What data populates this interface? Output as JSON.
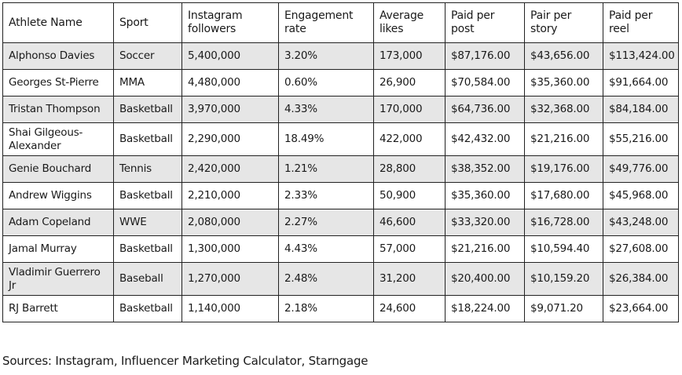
{
  "table": {
    "headers": [
      "Athlete Name",
      "Sport",
      "Instagram followers",
      "Engagement rate",
      "Average likes",
      "Paid per post",
      "Pair per story",
      "Paid per reel"
    ],
    "rows": [
      [
        "Alphonso Davies",
        "Soccer",
        "5,400,000",
        "3.20%",
        "173,000",
        "$87,176.00",
        "$43,656.00",
        "$113,424.00"
      ],
      [
        "Georges St-Pierre",
        "MMA",
        "4,480,000",
        "0.60%",
        "26,900",
        "$70,584.00",
        "$35,360.00",
        "$91,664.00"
      ],
      [
        "Tristan Thompson",
        "Basketball",
        "3,970,000",
        "4.33%",
        "170,000",
        "$64,736.00",
        "$32,368.00",
        "$84,184.00"
      ],
      [
        "Shai Gilgeous-Alexander",
        "Basketball",
        "2,290,000",
        "18.49%",
        "422,000",
        "$42,432.00",
        "$21,216.00",
        "$55,216.00"
      ],
      [
        "Genie Bouchard",
        "Tennis",
        "2,420,000",
        "1.21%",
        "28,800",
        "$38,352.00",
        "$19,176.00",
        "$49,776.00"
      ],
      [
        "Andrew Wiggins",
        "Basketball",
        "2,210,000",
        "2.33%",
        "50,900",
        "$35,360.00",
        "$17,680.00",
        "$45,968.00"
      ],
      [
        "Adam Copeland",
        "WWE",
        "2,080,000",
        "2.27%",
        "46,600",
        "$33,320.00",
        "$16,728.00",
        "$43,248.00"
      ],
      [
        "Jamal Murray",
        "Basketball",
        "1,300,000",
        "4.43%",
        "57,000",
        "$21,216.00",
        "$10,594.40",
        "$27,608.00"
      ],
      [
        "Vladimir Guerrero Jr",
        "Baseball",
        "1,270,000",
        "2.48%",
        "31,200",
        "$20,400.00",
        "$10,159.20",
        "$26,384.00"
      ],
      [
        "RJ Barrett",
        "Basketball",
        "1,140,000",
        "2.18%",
        "24,600",
        "$18,224.00",
        "$9,071.20",
        "$23,664.00"
      ]
    ]
  },
  "footer": {
    "sources": "Sources: Instagram, Influencer Marketing Calculator, Starngage"
  }
}
